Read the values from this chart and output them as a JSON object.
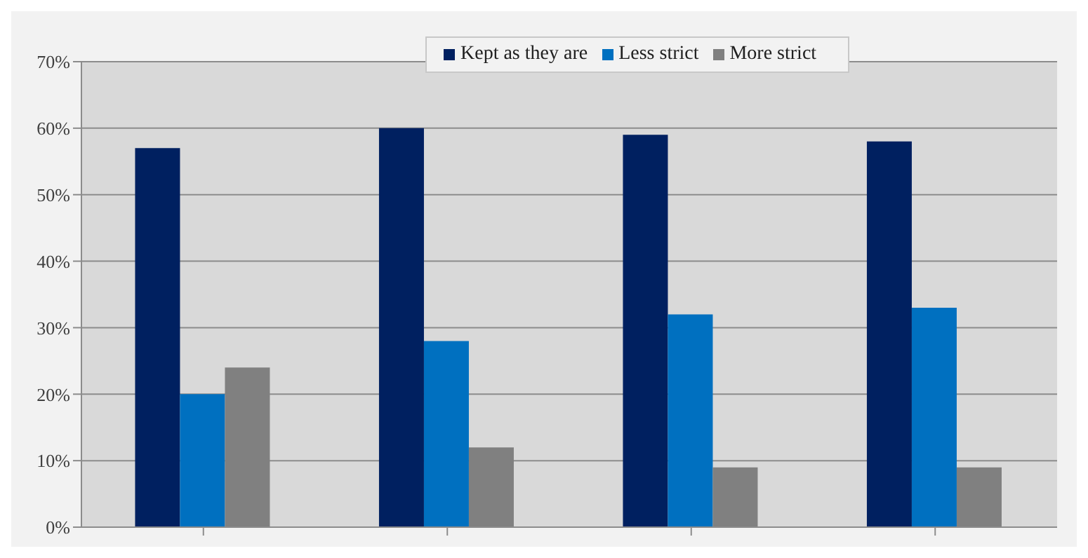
{
  "chart_data": {
    "type": "bar",
    "categories": [
      null,
      null,
      null,
      null
    ],
    "series": [
      {
        "name": "Kept as they are",
        "color": "#002060",
        "values": [
          57,
          60,
          59,
          58
        ]
      },
      {
        "name": "Less strict",
        "color": "#0070c0",
        "values": [
          20,
          28,
          32,
          33
        ]
      },
      {
        "name": "More strict",
        "color": "#808080",
        "values": [
          24,
          12,
          9,
          9
        ]
      }
    ],
    "ylim": [
      0,
      70
    ],
    "yticks": [
      {
        "value": 0,
        "label": "0%"
      },
      {
        "value": 10,
        "label": "10%"
      },
      {
        "value": 20,
        "label": "20%"
      },
      {
        "value": 30,
        "label": "30%"
      },
      {
        "value": 40,
        "label": "40%"
      },
      {
        "value": 50,
        "label": "50%"
      },
      {
        "value": 60,
        "label": "60%"
      },
      {
        "value": 70,
        "label": "70%"
      }
    ],
    "grid": "y",
    "legend": "top"
  }
}
